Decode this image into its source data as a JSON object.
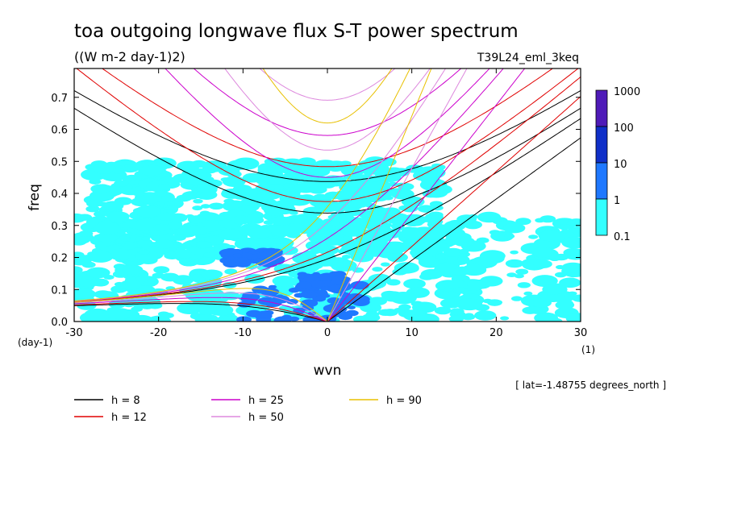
{
  "chart_data": {
    "type": "heatmap",
    "title": "toa outgoing longwave flux S-T power spectrum",
    "subtitle": "((W m-2 day-1)2)",
    "run_label": "T39L24_eml_3keq",
    "xlabel": "wvn",
    "ylabel": "freq",
    "x_unit": "(1)",
    "y_unit": "(day-1)",
    "xlim": [
      -30,
      30
    ],
    "ylim": [
      0,
      0.79
    ],
    "x_ticks": [
      "-30",
      "-20",
      "-10",
      "0",
      "10",
      "20",
      "30"
    ],
    "y_ticks": [
      "0.0",
      "0.1",
      "0.2",
      "0.3",
      "0.4",
      "0.5",
      "0.6",
      "0.7"
    ],
    "footnote": "[ lat=-1.48755 degrees_north ]",
    "colorbar": {
      "levels": [
        "0.1",
        "1",
        "10",
        "100",
        "1000"
      ],
      "colors": [
        "#33ffff",
        "#1f78ff",
        "#1030c8",
        "#4f1bb8"
      ]
    },
    "power_regions": [
      {
        "level": 1,
        "wvn": [
          -30,
          30
        ],
        "freq": [
          0.0,
          0.33
        ]
      },
      {
        "level": 1,
        "wvn": [
          -28,
          14
        ],
        "freq": [
          0.2,
          0.5
        ]
      },
      {
        "level": 2,
        "wvn": [
          -10,
          4
        ],
        "freq": [
          0.0,
          0.12
        ]
      },
      {
        "level": 2,
        "wvn": [
          -12,
          -6
        ],
        "freq": [
          0.18,
          0.22
        ]
      },
      {
        "level": 2,
        "wvn": [
          -3,
          2
        ],
        "freq": [
          0.1,
          0.15
        ]
      }
    ],
    "dispersion_curves": [
      {
        "name": "h = 8",
        "h": 8,
        "color": "#000000"
      },
      {
        "name": "h = 12",
        "h": 12,
        "color": "#e00000"
      },
      {
        "name": "h = 25",
        "h": 25,
        "color": "#cc00cc"
      },
      {
        "name": "h = 50",
        "h": 50,
        "color": "#dd88dd"
      },
      {
        "name": "h = 90",
        "h": 90,
        "color": "#e8c000"
      }
    ]
  }
}
